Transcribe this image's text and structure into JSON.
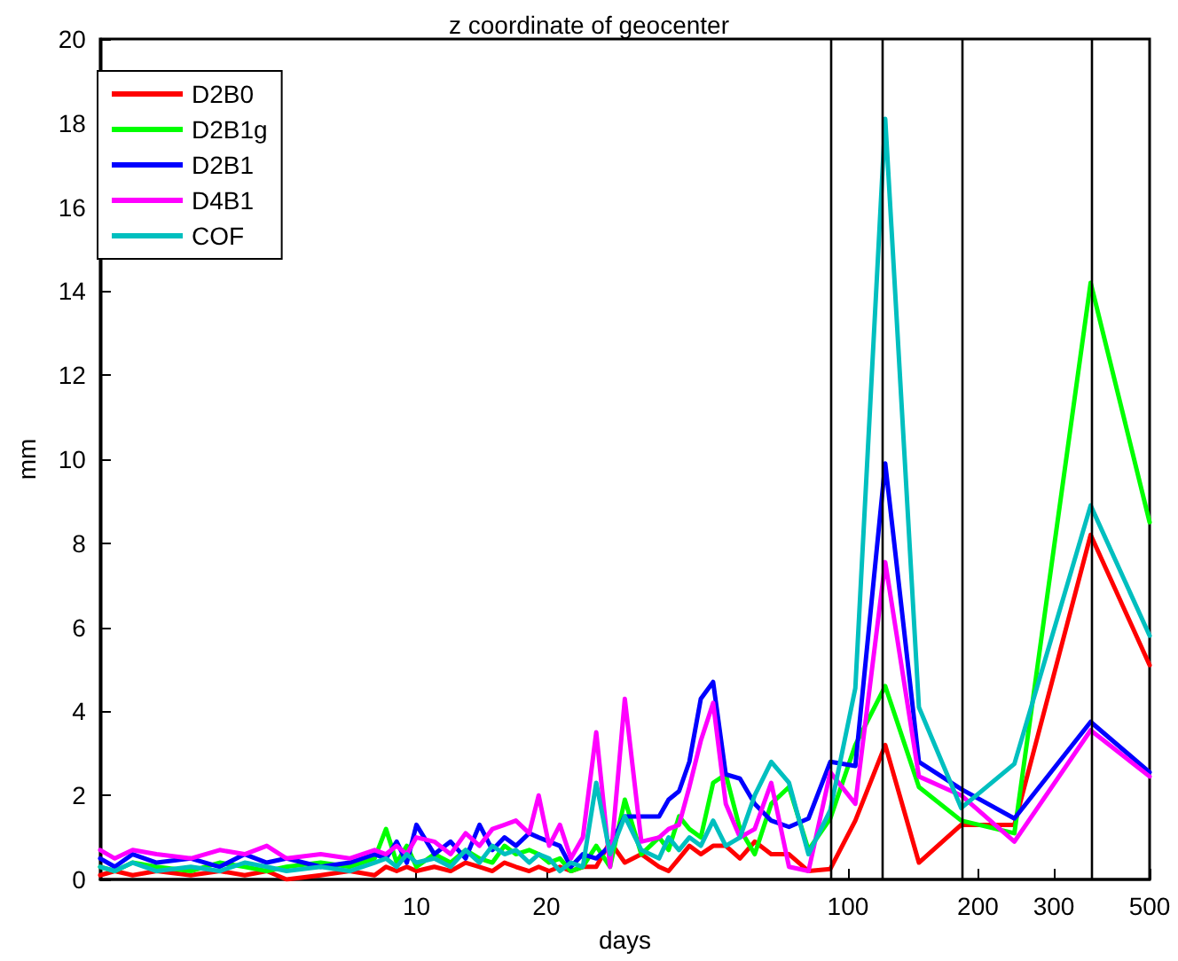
{
  "chart_data": {
    "type": "line",
    "title": "z coordinate of geocenter",
    "xlabel": "days",
    "ylabel": "mm",
    "log": "x",
    "xlim": [
      1.85,
      500
    ],
    "xticks": [
      10,
      20,
      100,
      200,
      300,
      500
    ],
    "ylim": [
      0,
      20
    ],
    "yticks": [
      0,
      2,
      4,
      6,
      8,
      10,
      12,
      14,
      16,
      18,
      20
    ],
    "grid": false,
    "legend": "top left",
    "marker": "none",
    "line_style": "solid",
    "x": [
      1.85,
      2.0,
      2.2,
      2.5,
      3.0,
      3.5,
      4.0,
      4.5,
      5.0,
      6.0,
      7.0,
      8.0,
      8.5,
      9.0,
      9.5,
      10.0,
      11.0,
      12.0,
      13.0,
      14.0,
      15.0,
      16.0,
      17.0,
      18.25,
      19.2,
      20.3,
      21.5,
      22.8,
      24.3,
      26.1,
      28.1,
      30.4,
      33.2,
      36.5,
      38.4,
      40.6,
      42.9,
      45.6,
      48.7,
      52.1,
      56.2,
      60.8,
      66.4,
      73,
      81,
      91,
      104,
      122,
      146,
      183,
      243,
      365,
      500
    ],
    "series": [
      {
        "name": "D2B0",
        "color": "#ff0000",
        "values": [
          0.1,
          0.2,
          0.1,
          0.2,
          0.1,
          0.2,
          0.1,
          0.2,
          0.0,
          0.1,
          0.2,
          0.1,
          0.3,
          0.2,
          0.3,
          0.2,
          0.3,
          0.2,
          0.4,
          0.3,
          0.2,
          0.4,
          0.3,
          0.2,
          0.3,
          0.2,
          0.3,
          0.2,
          0.3,
          0.3,
          0.9,
          0.4,
          0.6,
          0.3,
          0.2,
          0.5,
          0.8,
          0.6,
          0.8,
          0.8,
          0.5,
          0.9,
          0.6,
          0.6,
          0.2,
          0.25,
          1.4,
          3.2,
          0.4,
          1.3,
          1.3,
          8.2,
          5.1
        ]
      },
      {
        "name": "D2B1g",
        "color": "#00ff00",
        "values": [
          0.3,
          0.2,
          0.4,
          0.3,
          0.2,
          0.4,
          0.3,
          0.2,
          0.3,
          0.4,
          0.3,
          0.5,
          1.2,
          0.4,
          0.8,
          0.3,
          0.6,
          0.4,
          0.7,
          0.5,
          0.4,
          0.8,
          0.6,
          0.7,
          0.6,
          0.4,
          0.5,
          0.2,
          0.3,
          0.8,
          0.3,
          1.9,
          0.6,
          1.0,
          0.7,
          1.5,
          1.2,
          1.0,
          2.3,
          2.5,
          1.2,
          0.6,
          1.8,
          2.2,
          0.7,
          1.45,
          3.2,
          4.6,
          2.2,
          1.4,
          1.1,
          14.2,
          8.5
        ]
      },
      {
        "name": "D2B1",
        "color": "#0000ff",
        "values": [
          0.5,
          0.3,
          0.6,
          0.4,
          0.5,
          0.3,
          0.6,
          0.4,
          0.5,
          0.3,
          0.4,
          0.6,
          0.5,
          0.9,
          0.4,
          1.3,
          0.6,
          0.9,
          0.5,
          1.3,
          0.7,
          1.0,
          0.8,
          1.1,
          1.0,
          0.9,
          0.8,
          0.3,
          0.6,
          0.5,
          0.8,
          1.5,
          1.5,
          1.5,
          1.9,
          2.1,
          2.8,
          4.3,
          4.7,
          2.5,
          2.4,
          1.8,
          1.4,
          1.25,
          1.45,
          2.8,
          2.7,
          9.9,
          2.8,
          2.15,
          1.45,
          3.75,
          2.55
        ]
      },
      {
        "name": "D4B1",
        "color": "#ff00ff",
        "values": [
          0.7,
          0.5,
          0.7,
          0.6,
          0.5,
          0.7,
          0.6,
          0.8,
          0.5,
          0.6,
          0.5,
          0.7,
          0.6,
          0.8,
          0.6,
          1.0,
          0.9,
          0.6,
          1.1,
          0.8,
          1.2,
          1.3,
          1.4,
          1.1,
          2.0,
          0.8,
          1.3,
          0.5,
          1.0,
          3.5,
          0.3,
          4.3,
          0.9,
          1.0,
          1.2,
          1.3,
          2.2,
          3.3,
          4.2,
          1.8,
          1.0,
          1.2,
          2.3,
          0.3,
          0.2,
          2.55,
          1.8,
          7.55,
          2.45,
          2.0,
          0.9,
          3.55,
          2.45
        ]
      },
      {
        "name": "COF",
        "color": "#00bfbf",
        "values": [
          0.3,
          0.2,
          0.4,
          0.2,
          0.3,
          0.2,
          0.4,
          0.3,
          0.2,
          0.3,
          0.2,
          0.4,
          0.5,
          0.3,
          0.6,
          0.4,
          0.5,
          0.3,
          0.7,
          0.4,
          0.8,
          0.6,
          0.7,
          0.4,
          0.6,
          0.5,
          0.2,
          0.4,
          0.3,
          2.3,
          0.6,
          1.5,
          0.7,
          0.5,
          1.0,
          0.7,
          1.0,
          0.8,
          1.4,
          0.8,
          1.0,
          2.0,
          2.8,
          2.3,
          0.6,
          1.65,
          4.55,
          18.1,
          4.1,
          1.7,
          2.75,
          8.9,
          5.8
        ]
      }
    ],
    "ref_lines": [
      {
        "axis": "x",
        "value": 91,
        "label": null,
        "color": "#000000"
      },
      {
        "axis": "x",
        "value": 120,
        "label": null,
        "color": "#000000"
      },
      {
        "axis": "x",
        "value": 183,
        "label": null,
        "color": "#000000"
      },
      {
        "axis": "x",
        "value": 365,
        "label": null,
        "color": "#000000"
      }
    ]
  }
}
